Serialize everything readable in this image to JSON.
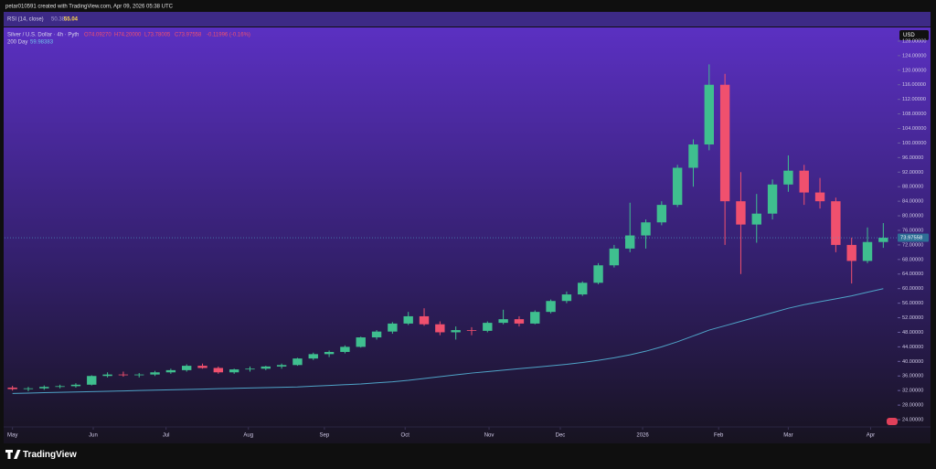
{
  "header": {
    "author_line": "petar010591 created with TradingView.com, Apr 09, 2026 05:38 UTC"
  },
  "rsi": {
    "label": "RSI (14, close)",
    "value_a": "50.38",
    "value_b": "55.04"
  },
  "footer": {
    "brand": "TradingView"
  },
  "chart_data": {
    "type": "candlestick",
    "symbol_info": "Silver / U.S. Dollar · 4h · Pyth",
    "ohlc_text": [
      "O74.09270",
      "H74.20000",
      "L73.78005",
      "C73.97558",
      "-0.11996 (-0.16%)"
    ],
    "currency": "USD",
    "up_color": "#3fbf8f",
    "down_color": "#f0506e",
    "categories": [
      null,
      null,
      null,
      null,
      null,
      null,
      null,
      null,
      null,
      null,
      null,
      null,
      null,
      null,
      null,
      null,
      null,
      null,
      null,
      null,
      null,
      null,
      null,
      null,
      null,
      null,
      null,
      null,
      null,
      null,
      null,
      null,
      null,
      null,
      null,
      null,
      null,
      null,
      null,
      null,
      null,
      null,
      null,
      null,
      null,
      null,
      null,
      null,
      null,
      null,
      null,
      null,
      null,
      null,
      null,
      null
    ],
    "ohlc": [
      [
        32.8,
        33.3,
        32.0,
        32.4
      ],
      [
        32.4,
        33.0,
        31.8,
        32.6
      ],
      [
        32.6,
        33.4,
        32.2,
        33.0
      ],
      [
        33.0,
        33.6,
        32.6,
        33.2
      ],
      [
        33.2,
        34.0,
        32.8,
        33.6
      ],
      [
        33.6,
        36.2,
        33.4,
        36.0
      ],
      [
        36.0,
        37.0,
        35.6,
        36.4
      ],
      [
        36.4,
        37.2,
        35.8,
        36.2
      ],
      [
        36.2,
        36.8,
        35.6,
        36.4
      ],
      [
        36.4,
        37.4,
        36.0,
        37.0
      ],
      [
        37.0,
        38.0,
        36.6,
        37.6
      ],
      [
        37.6,
        39.2,
        37.2,
        38.8
      ],
      [
        38.8,
        39.4,
        38.0,
        38.2
      ],
      [
        38.2,
        38.6,
        36.6,
        37.0
      ],
      [
        37.0,
        38.0,
        36.6,
        37.8
      ],
      [
        37.8,
        38.6,
        37.2,
        38.0
      ],
      [
        38.0,
        38.8,
        37.6,
        38.6
      ],
      [
        38.6,
        39.4,
        38.0,
        39.0
      ],
      [
        39.0,
        41.0,
        38.8,
        40.8
      ],
      [
        40.8,
        42.4,
        40.4,
        42.0
      ],
      [
        42.0,
        43.0,
        41.2,
        42.6
      ],
      [
        42.6,
        44.4,
        42.2,
        44.0
      ],
      [
        44.0,
        46.8,
        43.8,
        46.6
      ],
      [
        46.6,
        48.6,
        46.0,
        48.2
      ],
      [
        48.2,
        50.8,
        47.6,
        50.4
      ],
      [
        50.4,
        53.6,
        50.0,
        52.4
      ],
      [
        52.4,
        54.6,
        49.8,
        50.2
      ],
      [
        50.2,
        51.0,
        47.2,
        48.0
      ],
      [
        48.0,
        49.6,
        46.0,
        48.6
      ],
      [
        48.6,
        49.4,
        47.2,
        48.4
      ],
      [
        48.4,
        51.0,
        48.0,
        50.6
      ],
      [
        50.6,
        54.2,
        50.2,
        51.6
      ],
      [
        51.6,
        52.4,
        49.6,
        50.4
      ],
      [
        50.4,
        54.0,
        50.2,
        53.6
      ],
      [
        53.6,
        57.0,
        53.2,
        56.6
      ],
      [
        56.6,
        59.2,
        56.0,
        58.4
      ],
      [
        58.4,
        62.0,
        58.0,
        61.6
      ],
      [
        61.6,
        67.0,
        61.2,
        66.4
      ],
      [
        66.4,
        72.0,
        65.8,
        71.0
      ],
      [
        71.0,
        83.6,
        70.0,
        74.6
      ],
      [
        74.6,
        79.0,
        71.0,
        78.2
      ],
      [
        78.2,
        84.0,
        77.4,
        83.0
      ],
      [
        83.0,
        94.0,
        82.4,
        93.2
      ],
      [
        93.2,
        101.0,
        88.0,
        99.6
      ],
      [
        99.6,
        121.6,
        98.0,
        116.0
      ],
      [
        116.0,
        119.0,
        72.0,
        84.0
      ],
      [
        84.0,
        92.0,
        64.0,
        77.6
      ],
      [
        77.6,
        86.0,
        72.6,
        80.6
      ],
      [
        80.6,
        90.0,
        79.0,
        88.6
      ],
      [
        88.6,
        96.6,
        86.6,
        92.4
      ],
      [
        92.4,
        94.0,
        83.0,
        86.4
      ],
      [
        86.4,
        90.4,
        82.0,
        84.0
      ],
      [
        84.0,
        85.0,
        70.0,
        72.0
      ],
      [
        72.0,
        74.0,
        61.4,
        67.6
      ],
      [
        67.6,
        76.8,
        67.0,
        72.8
      ],
      [
        72.8,
        78.0,
        71.2,
        73.97558
      ]
    ],
    "series": [
      {
        "name": "200 Day",
        "value_label": "59.98383",
        "color": "#4fa3c7",
        "values": [
          31.2,
          31.3,
          31.4,
          31.5,
          31.6,
          31.7,
          31.8,
          31.9,
          32.0,
          32.1,
          32.2,
          32.3,
          32.4,
          32.5,
          32.6,
          32.7,
          32.8,
          32.9,
          33.0,
          33.2,
          33.4,
          33.6,
          33.8,
          34.1,
          34.4,
          34.8,
          35.3,
          35.8,
          36.3,
          36.8,
          37.2,
          37.6,
          38.0,
          38.4,
          38.8,
          39.2,
          39.7,
          40.3,
          41.0,
          41.8,
          42.8,
          44.0,
          45.4,
          47.0,
          48.6,
          49.8,
          51.0,
          52.2,
          53.4,
          54.6,
          55.6,
          56.4,
          57.2,
          58.0,
          59.0,
          59.98
        ]
      }
    ],
    "xticks": [
      {
        "value": 0,
        "label": "May"
      },
      {
        "value": 5.1,
        "label": "Jun"
      },
      {
        "value": 9.7,
        "label": "Jul"
      },
      {
        "value": 14.9,
        "label": "Aug"
      },
      {
        "value": 19.7,
        "label": "Sep"
      },
      {
        "value": 24.8,
        "label": "Oct"
      },
      {
        "value": 30.1,
        "label": "Nov"
      },
      {
        "value": 34.6,
        "label": "Dec"
      },
      {
        "value": 39.8,
        "label": "2026"
      },
      {
        "value": 44.6,
        "label": "Feb"
      },
      {
        "value": 49.0,
        "label": "Mar"
      },
      {
        "value": 54.2,
        "label": "Apr"
      }
    ],
    "ylim": [
      22.5,
      131.5
    ],
    "yticks": [
      {
        "value": 24,
        "label": "24.00000"
      },
      {
        "value": 28,
        "label": "28.00000"
      },
      {
        "value": 32,
        "label": "32.00000"
      },
      {
        "value": 36,
        "label": "36.00000"
      },
      {
        "value": 40,
        "label": "40.00000"
      },
      {
        "value": 44,
        "label": "44.00000"
      },
      {
        "value": 48,
        "label": "48.00000"
      },
      {
        "value": 52,
        "label": "52.00000"
      },
      {
        "value": 56,
        "label": "56.00000"
      },
      {
        "value": 60,
        "label": "60.00000"
      },
      {
        "value": 64,
        "label": "64.00000"
      },
      {
        "value": 68,
        "label": "68.00000"
      },
      {
        "value": 72,
        "label": "72.00000"
      },
      {
        "value": 76,
        "label": "76.00000"
      },
      {
        "value": 80,
        "label": "80.00000"
      },
      {
        "value": 84,
        "label": "84.00000"
      },
      {
        "value": 88,
        "label": "88.00000"
      },
      {
        "value": 92,
        "label": "92.00000"
      },
      {
        "value": 96,
        "label": "96.00000"
      },
      {
        "value": 100,
        "label": "100.00000"
      },
      {
        "value": 104,
        "label": "104.00000"
      },
      {
        "value": 108,
        "label": "108.00000"
      },
      {
        "value": 112,
        "label": "112.00000"
      },
      {
        "value": 116,
        "label": "116.00000"
      },
      {
        "value": 120,
        "label": "120.00000"
      },
      {
        "value": 124,
        "label": "124.00000"
      },
      {
        "value": 128,
        "label": "128.00000"
      }
    ],
    "last_price_label": "73.97558",
    "grid": false
  }
}
